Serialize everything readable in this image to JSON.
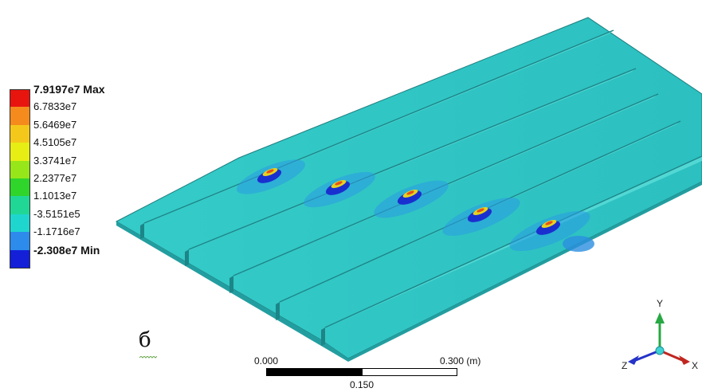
{
  "legend": {
    "entries": [
      {
        "label": "7.9197e7 Max",
        "color": "#e8150f",
        "strong": true
      },
      {
        "label": "6.7833e7",
        "color": "#f58b1d"
      },
      {
        "label": "5.6469e7",
        "color": "#f4c81b"
      },
      {
        "label": "4.5105e7",
        "color": "#e6ee14"
      },
      {
        "label": "3.3741e7",
        "color": "#96e61a"
      },
      {
        "label": "2.2377e7",
        "color": "#2fd52b"
      },
      {
        "label": "1.1013e7",
        "color": "#21d796"
      },
      {
        "label": "-3.5151e5",
        "color": "#1fd6cf"
      },
      {
        "label": "-1.1716e7",
        "color": "#2d8bec"
      },
      {
        "label": "-2.308e7 Min",
        "color": "#1320d8",
        "strong": true
      }
    ]
  },
  "figure_letter": "б",
  "scale": {
    "left_label": "0.000",
    "right_label": "0.300 (m)",
    "mid_label": "0.150"
  },
  "triad": {
    "x_label": "X",
    "y_label": "Y",
    "z_label": "Z"
  },
  "colors": {
    "plate": "#2fc6c3",
    "plate_dark": "#25aeb0",
    "edge": "#1f7e7f",
    "low_zone": "#2a8fe0",
    "min_zone": "#1a2fd0",
    "weld_yellow": "#e8d21e"
  }
}
